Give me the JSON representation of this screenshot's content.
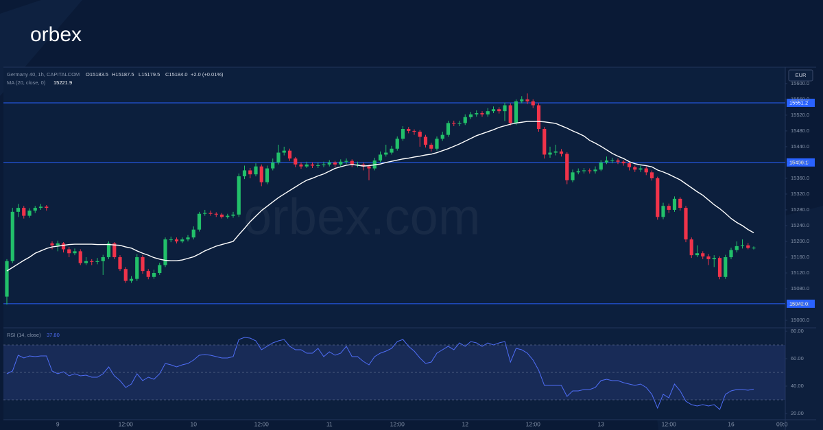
{
  "header": {
    "logo": "orbex",
    "watermark": "orbex.com"
  },
  "chart_data": [
    {
      "type": "candlestick",
      "title": "Germany 40, 1h, CAPITALCOM",
      "quote": [
        "O15183.5",
        "H15187.5",
        "L15179.5",
        "C15184.0",
        "+2.0 (+0.01%)"
      ],
      "currency": "EUR",
      "up_color": "#22c06a",
      "down_color": "#f0334a",
      "categories": [
        null,
        null,
        null,
        null,
        null,
        null,
        null,
        null,
        null,
        "9",
        null,
        null,
        null,
        null,
        null,
        null,
        null,
        null,
        null,
        null,
        null,
        "12:00",
        null,
        null,
        null,
        null,
        null,
        null,
        null,
        null,
        null,
        null,
        null,
        "10",
        null,
        null,
        null,
        null,
        null,
        null,
        null,
        null,
        null,
        null,
        null,
        "12:00",
        null,
        null,
        null,
        null,
        null,
        null,
        null,
        null,
        null,
        null,
        null,
        "11",
        null,
        null,
        null,
        null,
        null,
        null,
        null,
        null,
        null,
        null,
        null,
        "12:00",
        null,
        null,
        null,
        null,
        null,
        null,
        null,
        null,
        null,
        null,
        null,
        "12",
        null,
        null,
        null,
        null,
        null,
        null,
        null,
        null,
        null,
        null,
        null,
        "12:00",
        null,
        null,
        null,
        null,
        null,
        null,
        null,
        null,
        null,
        null,
        null,
        "13",
        null,
        null,
        null,
        null,
        null,
        null,
        null,
        null,
        null,
        null,
        null,
        "12:00",
        null,
        null,
        null,
        null,
        null,
        null,
        null,
        null,
        null,
        null,
        "16",
        null,
        null,
        null,
        null,
        null,
        null,
        null,
        null,
        "09:0"
      ],
      "open": [
        15060,
        15150,
        15275,
        15285,
        15265,
        15278,
        15285,
        15288,
        15195,
        15190,
        15195,
        15180,
        15170,
        15175,
        15145,
        15150,
        15148,
        15150,
        15160,
        15195,
        15160,
        15130,
        15100,
        15105,
        15160,
        15125,
        15110,
        15120,
        15140,
        15205,
        15205,
        15200,
        15205,
        15210,
        15230,
        15270,
        15272,
        15270,
        15268,
        15262,
        15265,
        15268,
        15365,
        15380,
        15370,
        15390,
        15350,
        15385,
        15400,
        15425,
        15430,
        15410,
        15395,
        15390,
        15395,
        15392,
        15393,
        15395,
        15400,
        15395,
        15402,
        15404,
        15395,
        15395,
        15390,
        15385,
        15405,
        15420,
        15425,
        15435,
        15460,
        15485,
        15480,
        15478,
        15465,
        15445,
        15435,
        15460,
        15470,
        15500,
        15498,
        15500,
        15515,
        15522,
        15525,
        15522,
        15530,
        15535,
        15530,
        15545,
        15500,
        15555,
        15560,
        15555,
        15545,
        15485,
        15420,
        15425,
        15428,
        15422,
        15355,
        15375,
        15378,
        15380,
        15378,
        15382,
        15400,
        15405,
        15405,
        15402,
        15398,
        15388,
        15382,
        15385,
        15375,
        15360,
        15262,
        15290,
        15280,
        15308,
        15285,
        15205,
        15165,
        15170,
        15162,
        15155,
        15158,
        15110,
        15160,
        15178,
        15188,
        15190,
        15183.5,
        null,
        null,
        null,
        null,
        null
      ],
      "high": [
        15155,
        15285,
        15295,
        15290,
        15284,
        15290,
        15295,
        15292,
        15200,
        15202,
        15198,
        15186,
        15182,
        15180,
        15160,
        15155,
        15158,
        15166,
        15200,
        15198,
        15165,
        15135,
        15112,
        15168,
        15165,
        15130,
        15128,
        15146,
        15210,
        15212,
        15210,
        15210,
        15216,
        15238,
        15275,
        15280,
        15278,
        15274,
        15272,
        15270,
        15275,
        15372,
        15392,
        15386,
        15398,
        15395,
        15392,
        15410,
        15445,
        15440,
        15435,
        15414,
        15400,
        15402,
        15400,
        15400,
        15402,
        15406,
        15404,
        15408,
        15410,
        15408,
        15402,
        15400,
        15395,
        15412,
        15428,
        15445,
        15442,
        15466,
        15492,
        15490,
        15484,
        15482,
        15470,
        15450,
        15466,
        15478,
        15506,
        15506,
        15506,
        15522,
        15528,
        15532,
        15530,
        15538,
        15542,
        15540,
        15552,
        15550,
        15560,
        15568,
        15575,
        15560,
        15550,
        15490,
        15440,
        15445,
        15434,
        15426,
        15382,
        15385,
        15386,
        15385,
        15390,
        15406,
        15415,
        15412,
        15410,
        15406,
        15402,
        15392,
        15392,
        15390,
        15380,
        15364,
        15298,
        15296,
        15314,
        15312,
        15290,
        15210,
        15190,
        15175,
        15168,
        15165,
        15162,
        15166,
        15184,
        15200,
        15205,
        15196,
        15187.5,
        null,
        null,
        null,
        null,
        null
      ],
      "low": [
        15040,
        15145,
        15262,
        15258,
        15260,
        15272,
        15280,
        15278,
        15180,
        15175,
        15172,
        15160,
        15165,
        15140,
        15140,
        15140,
        15142,
        15115,
        15155,
        15155,
        15125,
        15095,
        15095,
        15100,
        15118,
        15104,
        15105,
        15115,
        15135,
        15198,
        15195,
        15196,
        15200,
        15205,
        15225,
        15265,
        15265,
        15262,
        15258,
        15258,
        15260,
        15262,
        15358,
        15360,
        15365,
        15340,
        15345,
        15380,
        15395,
        15418,
        15404,
        15388,
        15384,
        15386,
        15386,
        15386,
        15388,
        15390,
        15388,
        15390,
        15396,
        15388,
        15388,
        15380,
        15355,
        15380,
        15400,
        15415,
        15420,
        15430,
        15455,
        15474,
        15470,
        15440,
        15438,
        15428,
        15430,
        15455,
        15465,
        15492,
        15492,
        15495,
        15510,
        15516,
        15516,
        15516,
        15525,
        15524,
        15505,
        15494,
        15495,
        15550,
        15548,
        15538,
        15478,
        15410,
        15412,
        15418,
        15415,
        15345,
        15350,
        15370,
        15372,
        15372,
        15372,
        15378,
        15396,
        15398,
        15396,
        15392,
        15380,
        15376,
        15376,
        15368,
        15354,
        15255,
        15256,
        15272,
        15275,
        15278,
        15198,
        15158,
        15160,
        15155,
        15140,
        15135,
        15104,
        15105,
        15155,
        15172,
        15182,
        15180,
        15179.5,
        null,
        null,
        null,
        null,
        null
      ],
      "close": [
        15150,
        15275,
        15285,
        15265,
        15278,
        15285,
        15288,
        15285,
        15190,
        15195,
        15180,
        15170,
        15175,
        15145,
        15150,
        15148,
        15150,
        15160,
        15195,
        15160,
        15130,
        15100,
        15105,
        15160,
        15125,
        15110,
        15120,
        15140,
        15205,
        15205,
        15200,
        15205,
        15210,
        15230,
        15270,
        15272,
        15270,
        15268,
        15262,
        15265,
        15268,
        15365,
        15380,
        15370,
        15390,
        15350,
        15385,
        15400,
        15425,
        15430,
        15410,
        15395,
        15390,
        15395,
        15392,
        15393,
        15395,
        15400,
        15395,
        15402,
        15404,
        15395,
        15395,
        15390,
        15385,
        15405,
        15420,
        15425,
        15435,
        15460,
        15485,
        15480,
        15478,
        15465,
        15445,
        15435,
        15460,
        15470,
        15500,
        15498,
        15500,
        15515,
        15522,
        15525,
        15522,
        15530,
        15535,
        15530,
        15545,
        15500,
        15555,
        15560,
        15555,
        15545,
        15485,
        15420,
        15425,
        15428,
        15422,
        15355,
        15375,
        15378,
        15380,
        15378,
        15382,
        15400,
        15405,
        15405,
        15402,
        15398,
        15388,
        15382,
        15385,
        15375,
        15360,
        15262,
        15290,
        15280,
        15308,
        15285,
        15205,
        15165,
        15170,
        15162,
        15155,
        15158,
        15110,
        15160,
        15178,
        15188,
        15190,
        15183.5,
        15184,
        null,
        null,
        null,
        null,
        null
      ],
      "series": [
        {
          "name": "MA (20, close, 0)",
          "color": "#ffffff",
          "values": [
            15125,
            15134,
            15143,
            15152,
            15160,
            15170,
            15176,
            15182,
            15186,
            15188,
            15190,
            15192,
            15193,
            15193,
            15193,
            15193,
            15192,
            15192,
            15192,
            15191,
            15190,
            15186,
            15183,
            15176,
            15170,
            15165,
            15159,
            15155,
            15152,
            15151,
            15151,
            15153,
            15157,
            15161,
            15168,
            15176,
            15182,
            15188,
            15192,
            15196,
            15200,
            15217,
            15233,
            15250,
            15264,
            15278,
            15289,
            15300,
            15311,
            15320,
            15329,
            15338,
            15347,
            15355,
            15360,
            15366,
            15371,
            15378,
            15385,
            15389,
            15393,
            15395,
            15393,
            15391,
            15392,
            15394,
            15396,
            15400,
            15403,
            15406,
            15409,
            15411,
            15414,
            15416,
            15419,
            15421,
            15425,
            15430,
            15435,
            15441,
            15447,
            15454,
            15461,
            15468,
            15473,
            15478,
            15483,
            15489,
            15493,
            15497,
            15500,
            15502,
            15504,
            15504,
            15504,
            15503,
            15501,
            15499,
            15493,
            15487,
            15480,
            15474,
            15467,
            15456,
            15449,
            15441,
            15432,
            15423,
            15416,
            15410,
            15402,
            15397,
            15394,
            15392,
            15389,
            15381,
            15376,
            15370,
            15363,
            15356,
            15346,
            15336,
            15326,
            15317,
            15305,
            15293,
            15283,
            15271,
            15258,
            15248,
            15240,
            15230,
            15221.9,
            null,
            null,
            null,
            null,
            null
          ]
        }
      ],
      "hlines": [
        15551.2,
        15400.1,
        {
          "value": 15042,
          "label": "15042.0"
        }
      ],
      "hline_color": "#2962ff",
      "ylim": [
        14981,
        15638
      ],
      "yticks": [
        {
          "value": 15000,
          "label": "15000.0"
        },
        {
          "value": 15040,
          "label": "15040.0"
        },
        {
          "value": 15080,
          "label": "15080.0"
        },
        {
          "value": 15120,
          "label": "15120.0"
        },
        {
          "value": 15160,
          "label": "15160.0"
        },
        {
          "value": 15200,
          "label": "15200.0"
        },
        {
          "value": 15240,
          "label": "15240.0"
        },
        {
          "value": 15280,
          "label": "15280.0"
        },
        {
          "value": 15320,
          "label": "15320.0"
        },
        {
          "value": 15360,
          "label": "15360.0"
        },
        {
          "value": 15400,
          "label": "15400.0"
        },
        {
          "value": 15440,
          "label": "15440.0"
        },
        {
          "value": 15480,
          "label": "15480.0"
        },
        {
          "value": 15520,
          "label": "15520.0"
        },
        {
          "value": 15560,
          "label": "15560.0"
        },
        {
          "value": 15600,
          "label": "15600.0"
        }
      ]
    },
    {
      "type": "line",
      "series": [
        {
          "name": "RSI (14, close)",
          "color": "#4f6ef7",
          "last_label": "37.80",
          "values": [
            49,
            51,
            62.5,
            60.5,
            62,
            61.5,
            62,
            62,
            51,
            49,
            50.5,
            47.5,
            49,
            47.5,
            48,
            46.5,
            46.5,
            49,
            54,
            47.5,
            44,
            39,
            41.5,
            49,
            44,
            46.5,
            45,
            49,
            56.5,
            55.5,
            54,
            55.5,
            56.5,
            59,
            62.5,
            63,
            62.5,
            61.5,
            60.5,
            60.5,
            61.5,
            74,
            75.5,
            75,
            73,
            66.5,
            69,
            71.5,
            73,
            74,
            69,
            66.5,
            66.5,
            64,
            64,
            67.5,
            61.5,
            65,
            62.5,
            64,
            69,
            61.5,
            61.5,
            58,
            55.5,
            61.5,
            64,
            65.5,
            67.5,
            72.5,
            74,
            69,
            65.5,
            60.5,
            56.5,
            57.5,
            64,
            66.5,
            69,
            66.5,
            71.5,
            69,
            72.5,
            71.5,
            69,
            71.5,
            70,
            71.5,
            72.5,
            57.5,
            67.5,
            66.5,
            64,
            59,
            51.5,
            40.5,
            40.5,
            40.5,
            40.5,
            32.5,
            36.5,
            36.5,
            37.5,
            37.5,
            39,
            44,
            45,
            44,
            44,
            42.5,
            41.5,
            40.5,
            41.5,
            39,
            34,
            24,
            34,
            31.5,
            41.5,
            36.5,
            29,
            26.5,
            25.5,
            26.5,
            25.5,
            26.5,
            23,
            34,
            36.5,
            37.5,
            37.5,
            37,
            37.8,
            null,
            null,
            null,
            null,
            null
          ]
        }
      ],
      "band": [
        30,
        70
      ],
      "band_color": "#3b4fa8",
      "hlines": [
        70,
        50,
        30
      ],
      "ylim": [
        15.5,
        82.5
      ],
      "yticks": [
        {
          "value": 20,
          "label": "20.00"
        },
        {
          "value": 40,
          "label": "40.00"
        },
        {
          "value": 60,
          "label": "60.00"
        },
        {
          "value": 80,
          "label": "80.00"
        }
      ]
    }
  ]
}
